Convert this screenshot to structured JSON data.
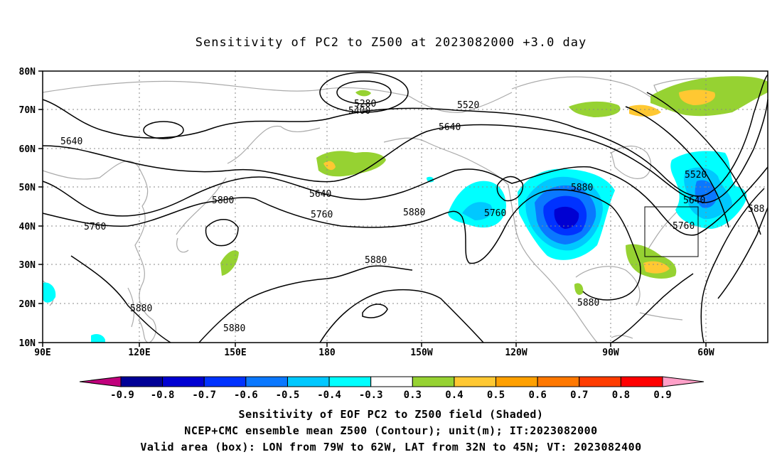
{
  "title": "Sensitivity of PC2 to Z500 at 2023082000 +3.0 day",
  "captions": {
    "line1": "Sensitivity of EOF PC2 to Z500 field (Shaded)",
    "line2": "NCEP+CMC ensemble mean Z500 (Contour); unit(m); IT:2023082000",
    "line3": "Valid area (box): LON from 79W to 62W, LAT from 32N to 45N; VT: 2023082400"
  },
  "axes": {
    "lon_labels": [
      "90E",
      "120E",
      "150E",
      "180",
      "150W",
      "120W",
      "90W",
      "60W"
    ],
    "lat_labels": [
      "80N",
      "70N",
      "60N",
      "50N",
      "40N",
      "30N",
      "20N",
      "10N"
    ],
    "lon_range": [
      90,
      330
    ],
    "lat_range": [
      10,
      80
    ]
  },
  "contour_labels": [
    "5280",
    "5400",
    "5520",
    "5640",
    "5640",
    "5640",
    "5880",
    "5760",
    "5760",
    "5880",
    "5880",
    "5760",
    "5880",
    "5880",
    "5880",
    "5880",
    "5520",
    "5640",
    "5760",
    "588"
  ],
  "colorbar": {
    "tick_labels": [
      "-0.9",
      "-0.8",
      "-0.7",
      "-0.6",
      "-0.5",
      "-0.4",
      "-0.3",
      "0.3",
      "0.4",
      "0.5",
      "0.6",
      "0.7",
      "0.8",
      "0.9"
    ],
    "colors": [
      "#c0007c",
      "#000096",
      "#0000d2",
      "#0032ff",
      "#0a78ff",
      "#00c8ff",
      "#00ffff",
      "#ffffff",
      "#96d232",
      "#ffc832",
      "#ffa000",
      "#ff7800",
      "#ff3c00",
      "#ff0000",
      "#ffa0c8"
    ]
  },
  "valid_box": {
    "lon_min": -79,
    "lon_max": -62,
    "lat_min": 32,
    "lat_max": 45
  }
}
